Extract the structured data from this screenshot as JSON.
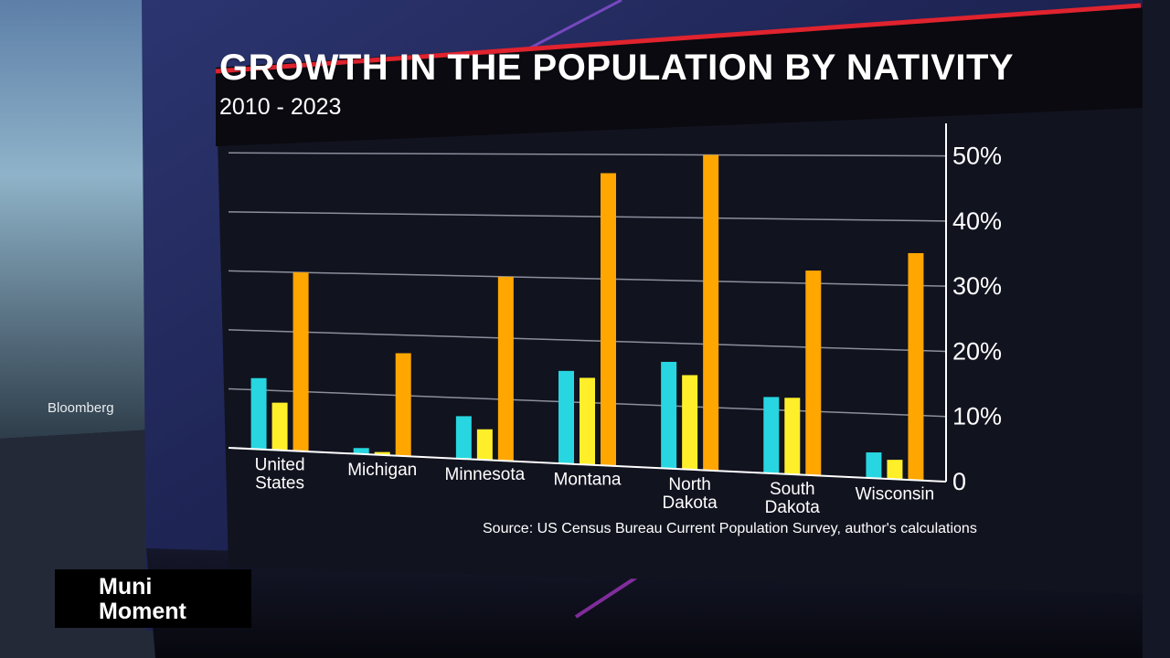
{
  "broadcast": {
    "network_logo": "Bloomberg",
    "segment_title_line1": "Muni",
    "segment_title_line2": "Moment"
  },
  "colors": {
    "accent_red": "#e0232e",
    "series_colors": [
      "#27d6e0",
      "#ffef2a",
      "#ffa600"
    ],
    "panel": "#11131f",
    "grid": "#8c8f9c"
  },
  "chart_data": {
    "type": "bar",
    "title": "GROWTH IN THE POPULATION BY NATIVITY",
    "subtitle": "2010 - 2023",
    "source": "Source: US Census Bureau Current Population Survey, author's calculations",
    "categories": [
      [
        "United",
        "States"
      ],
      [
        "Michigan"
      ],
      [
        "Minnesota"
      ],
      [
        "Montana"
      ],
      [
        "North",
        "Dakota"
      ],
      [
        "South",
        "Dakota"
      ],
      [
        "Wisconsin"
      ]
    ],
    "series": [
      {
        "values": [
          12,
          1,
          7,
          15,
          17,
          12,
          4
        ]
      },
      {
        "values": [
          8,
          0.5,
          5,
          14,
          15,
          12,
          3
        ]
      },
      {
        "values": [
          30,
          17,
          30,
          47,
          50,
          32,
          35
        ]
      }
    ],
    "y_ticks": [
      "0",
      "10%",
      "20%",
      "30%",
      "40%",
      "50%"
    ],
    "y_tick_values": [
      0,
      10,
      20,
      30,
      40,
      50
    ],
    "ylim": [
      0,
      55
    ],
    "y_axis_side": "right",
    "grid": true,
    "legend": "none"
  }
}
